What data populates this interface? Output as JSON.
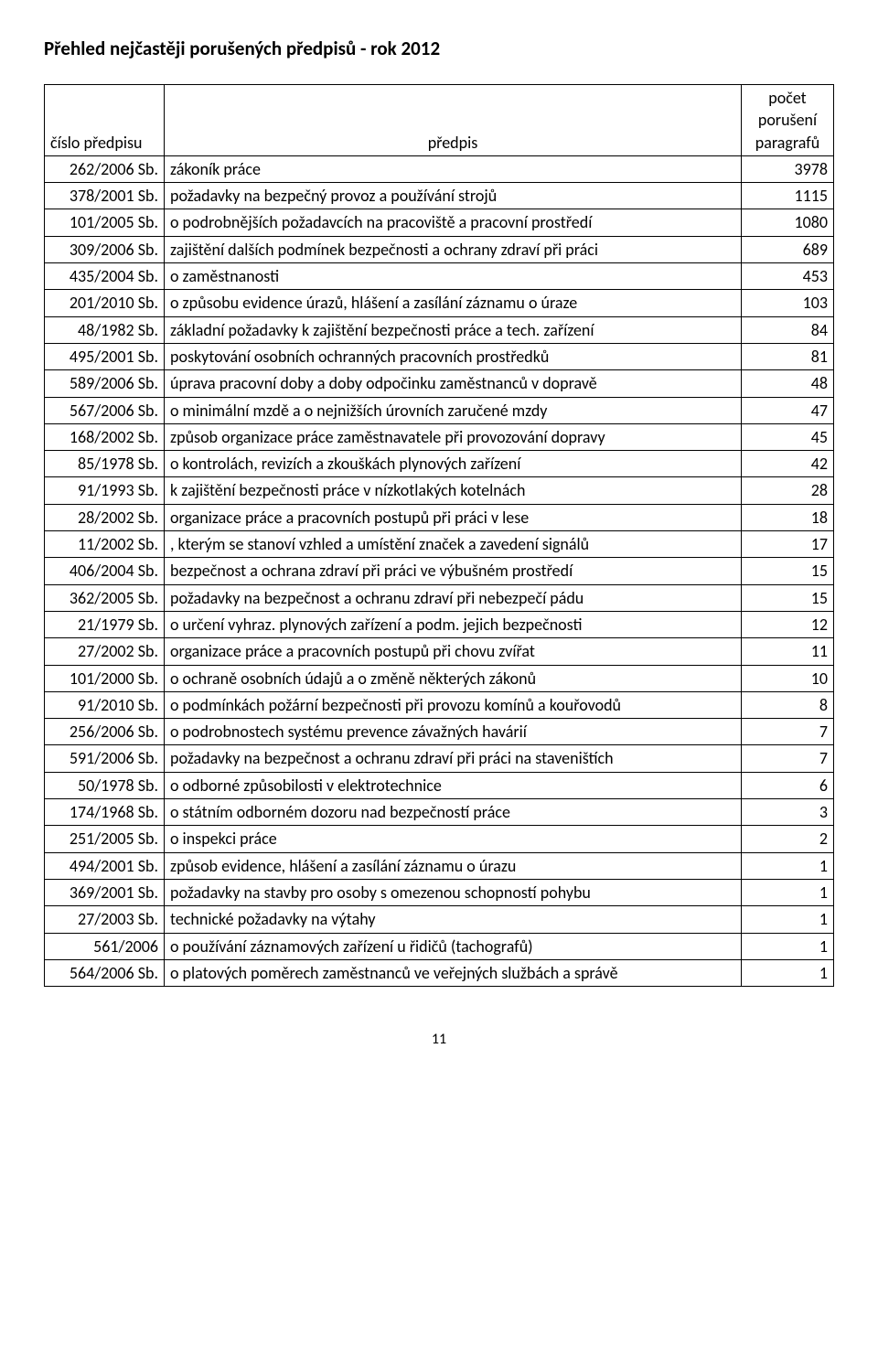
{
  "page": {
    "title": "Přehled nejčastěji porušených předpisů - rok 2012",
    "page_number": "11"
  },
  "table": {
    "headers": {
      "code": "číslo předpisu",
      "desc": "předpis",
      "count": "počet porušení paragrafů"
    },
    "rows": [
      {
        "code": "262/2006 Sb.",
        "desc": "zákoník práce",
        "count": "3978"
      },
      {
        "code": "378/2001 Sb.",
        "desc": "požadavky na bezpečný provoz a používání strojů",
        "count": "1115"
      },
      {
        "code": "101/2005 Sb.",
        "desc": "o podrobnějších požadavcích na pracoviště a pracovní prostředí",
        "count": "1080"
      },
      {
        "code": "309/2006 Sb.",
        "desc": "zajištění dalších podmínek bezpečnosti a ochrany zdraví při práci",
        "count": "689"
      },
      {
        "code": "435/2004 Sb.",
        "desc": "o zaměstnanosti",
        "count": "453"
      },
      {
        "code": "201/2010 Sb.",
        "desc": "o způsobu evidence úrazů, hlášení a zasílání záznamu o úraze",
        "count": "103"
      },
      {
        "code": "48/1982 Sb.",
        "desc": "základní požadavky k zajištění bezpečnosti práce a tech. zařízení",
        "count": "84"
      },
      {
        "code": "495/2001 Sb.",
        "desc": "poskytování osobních ochranných pracovních prostředků",
        "count": "81"
      },
      {
        "code": "589/2006 Sb.",
        "desc": "úprava pracovní doby a doby odpočinku zaměstnanců v dopravě",
        "count": "48"
      },
      {
        "code": "567/2006 Sb.",
        "desc": "o minimální mzdě a o nejnižších úrovních zaručené mzdy",
        "count": "47"
      },
      {
        "code": "168/2002 Sb.",
        "desc": "způsob organizace práce zaměstnavatele při provozování dopravy",
        "count": "45"
      },
      {
        "code": "85/1978 Sb.",
        "desc": "o kontrolách, revizích a zkouškách plynových zařízení",
        "count": "42"
      },
      {
        "code": "91/1993 Sb.",
        "desc": "k zajištění bezpečnosti práce v nízkotlakých kotelnách",
        "count": "28"
      },
      {
        "code": "28/2002 Sb.",
        "desc": "organizace práce a pracovních postupů při práci v lese",
        "count": "18"
      },
      {
        "code": "11/2002 Sb.",
        "desc": ", kterým se stanoví vzhled a umístění značek a zavedení signálů",
        "count": "17"
      },
      {
        "code": "406/2004 Sb.",
        "desc": "bezpečnost a ochrana zdraví při práci ve výbušném prostředí",
        "count": "15"
      },
      {
        "code": "362/2005 Sb.",
        "desc": "požadavky na bezpečnost a ochranu zdraví při nebezpečí pádu",
        "count": "15"
      },
      {
        "code": "21/1979 Sb.",
        "desc": "o určení vyhraz. plynových zařízení a podm. jejich bezpečnosti",
        "count": "12"
      },
      {
        "code": "27/2002 Sb.",
        "desc": "organizace práce a pracovních postupů při chovu zvířat",
        "count": "11"
      },
      {
        "code": "101/2000 Sb.",
        "desc": "o ochraně osobních údajů a o změně některých zákonů",
        "count": "10"
      },
      {
        "code": "91/2010 Sb.",
        "desc": "o podmínkách požární bezpečnosti při provozu komínů a kouřovodů",
        "count": "8"
      },
      {
        "code": "256/2006 Sb.",
        "desc": "o podrobnostech systému prevence závažných havárií",
        "count": "7"
      },
      {
        "code": "591/2006 Sb.",
        "desc": "požadavky na bezpečnost a ochranu zdraví při práci na staveništích",
        "count": "7"
      },
      {
        "code": "50/1978 Sb.",
        "desc": "o odborné způsobilosti v elektrotechnice",
        "count": "6"
      },
      {
        "code": "174/1968 Sb.",
        "desc": "o státním odborném dozoru nad bezpečností práce",
        "count": "3"
      },
      {
        "code": "251/2005 Sb.",
        "desc": "o inspekci práce",
        "count": "2"
      },
      {
        "code": "494/2001 Sb.",
        "desc": "způsob evidence, hlášení a zasílání záznamu o úrazu",
        "count": "1"
      },
      {
        "code": "369/2001 Sb.",
        "desc": "požadavky na stavby pro osoby s omezenou schopností pohybu",
        "count": "1"
      },
      {
        "code": "27/2003 Sb.",
        "desc": "technické požadavky na výtahy",
        "count": "1"
      },
      {
        "code": "561/2006",
        "desc": "o používání záznamových zařízení u řidičů (tachografů)",
        "count": "1"
      },
      {
        "code": "564/2006 Sb.",
        "desc": "o platových poměrech zaměstnanců ve veřejných službách a správě",
        "count": "1"
      }
    ]
  }
}
